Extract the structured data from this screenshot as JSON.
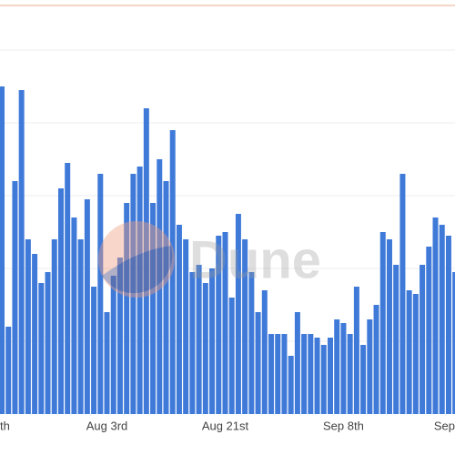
{
  "chart_data": {
    "type": "bar",
    "categories": [
      "th",
      null,
      null,
      null,
      null,
      null,
      null,
      null,
      null,
      null,
      null,
      null,
      null,
      null,
      null,
      null,
      "Aug 3rd",
      null,
      null,
      null,
      null,
      null,
      null,
      null,
      null,
      null,
      null,
      null,
      null,
      null,
      null,
      null,
      null,
      null,
      "Aug 21st",
      null,
      null,
      null,
      null,
      null,
      null,
      null,
      null,
      null,
      null,
      null,
      null,
      null,
      null,
      null,
      null,
      null,
      "Sep 8th",
      null,
      null,
      null,
      null,
      null,
      null,
      null,
      null,
      null,
      null,
      null,
      null,
      null,
      null,
      null,
      null,
      "Sep"
    ],
    "values": [
      4.5,
      1.2,
      3.2,
      4.45,
      2.4,
      2.2,
      1.8,
      1.95,
      2.4,
      3.1,
      3.45,
      2.7,
      2.4,
      2.95,
      1.75,
      3.3,
      1.4,
      1.9,
      2.15,
      2.9,
      3.3,
      3.4,
      4.2,
      2.9,
      3.5,
      3.2,
      3.9,
      2.6,
      2.4,
      1.95,
      2.05,
      1.8,
      2.0,
      2.45,
      2.5,
      1.6,
      2.75,
      2.4,
      1.95,
      1.4,
      1.7,
      1.1,
      1.1,
      1.1,
      0.8,
      1.4,
      1.1,
      1.1,
      1.05,
      0.95,
      1.05,
      1.3,
      1.25,
      1.1,
      1.75,
      0.95,
      1.3,
      1.5,
      2.5,
      2.4,
      2.05,
      3.3,
      1.7,
      1.65,
      2.05,
      2.3,
      2.7,
      2.6,
      2.45,
      1.95
    ],
    "color": "#3f7ad9",
    "ylim": [
      0,
      5.6
    ],
    "yticks": [
      1,
      2,
      3,
      4,
      5
    ],
    "grid": true,
    "watermark": "Dune"
  }
}
